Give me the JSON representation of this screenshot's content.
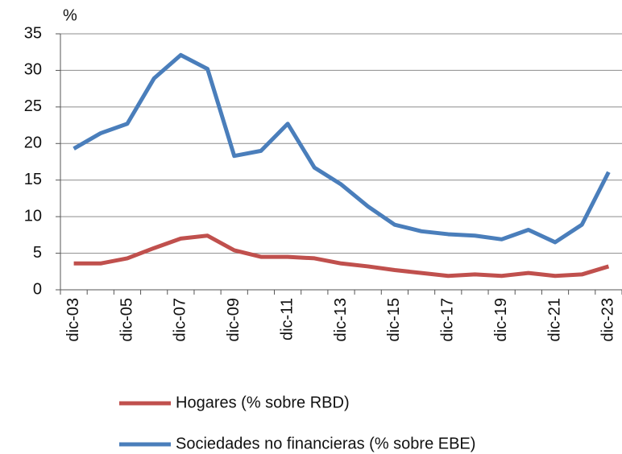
{
  "chart_data": {
    "type": "line",
    "y_label": "%",
    "categories": [
      "dic-03",
      null,
      "dic-05",
      null,
      "dic-07",
      null,
      "dic-09",
      null,
      "dic-11",
      null,
      "dic-13",
      null,
      "dic-15",
      null,
      "dic-17",
      null,
      "dic-19",
      null,
      "dic-21",
      null,
      "dic-23"
    ],
    "series": [
      {
        "name": "Hogares (% sobre RBD)",
        "color": "#c0504d",
        "values": [
          3.6,
          3.6,
          4.3,
          5.7,
          7.0,
          7.4,
          5.4,
          4.5,
          4.5,
          4.3,
          3.6,
          3.2,
          2.7,
          2.3,
          1.9,
          2.1,
          1.9,
          2.3,
          1.9,
          2.1,
          3.2
        ]
      },
      {
        "name": "Sociedades no financieras (% sobre EBE)",
        "color": "#4a7ebb",
        "values": [
          19.3,
          21.4,
          22.7,
          28.9,
          32.1,
          30.2,
          18.3,
          19.0,
          22.7,
          16.7,
          14.4,
          11.4,
          8.9,
          8.0,
          7.6,
          7.4,
          6.9,
          8.2,
          6.5,
          8.9,
          16.1
        ]
      }
    ],
    "ylim": [
      0,
      35
    ],
    "yticks": [
      0,
      5,
      10,
      15,
      20,
      25,
      30,
      35
    ],
    "grid": true
  }
}
